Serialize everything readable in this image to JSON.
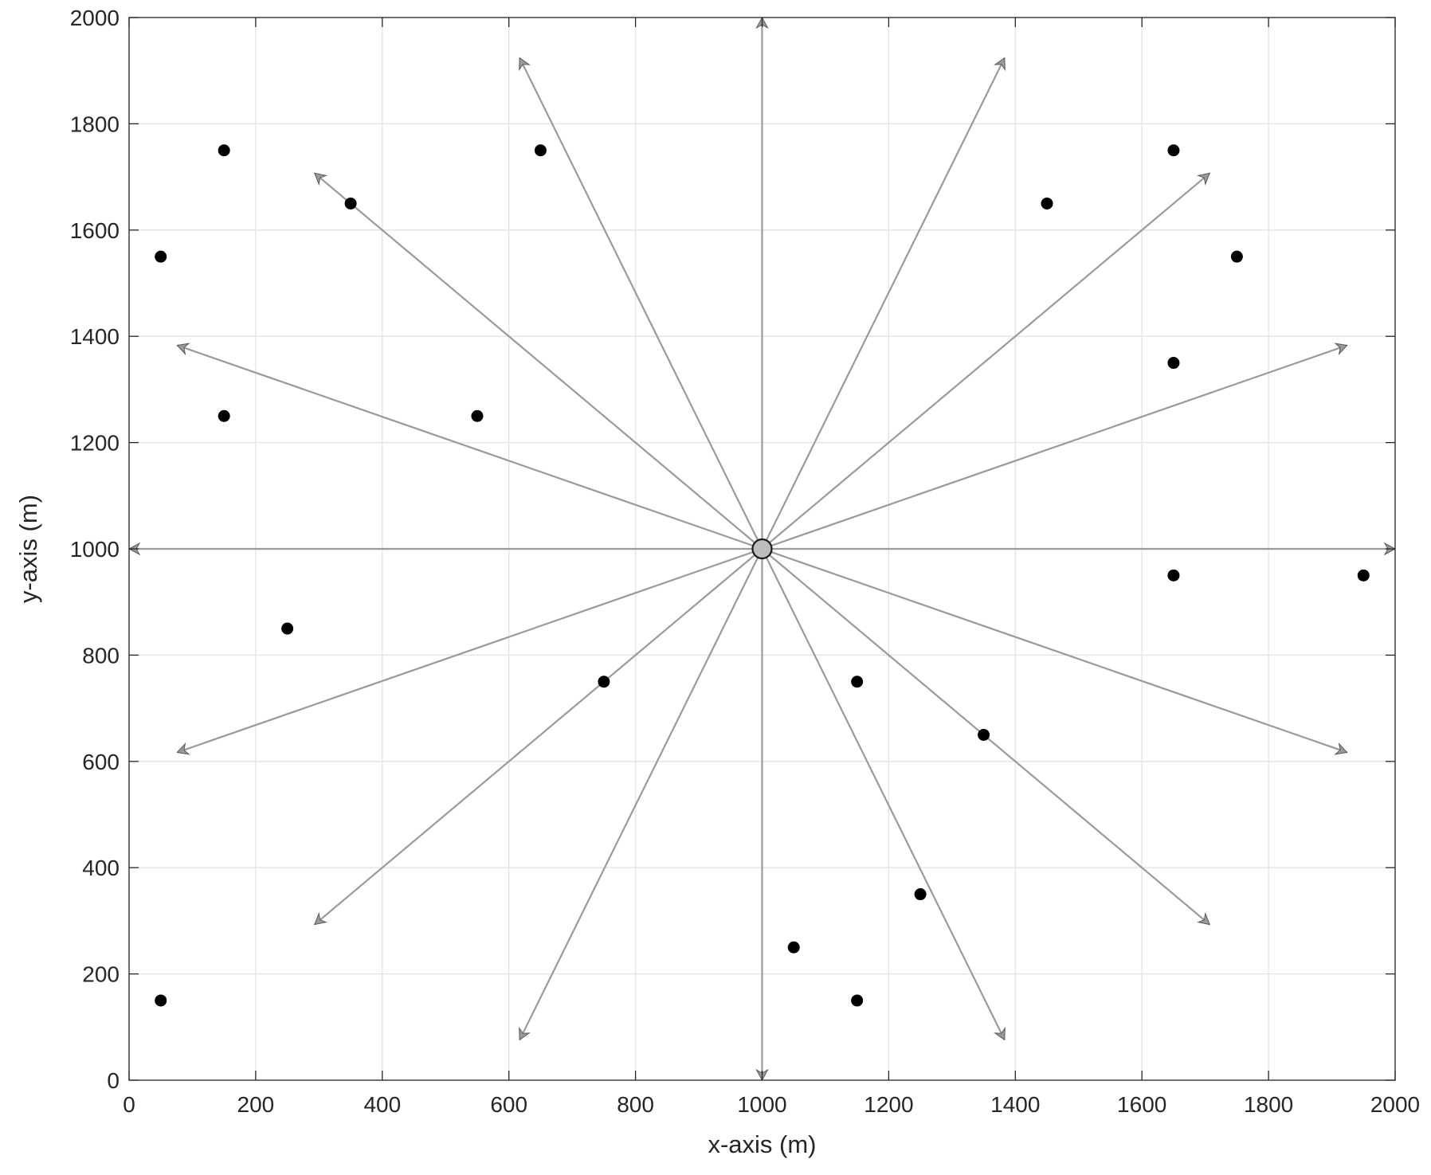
{
  "chart_data": {
    "type": "scatter",
    "title": "",
    "xlabel": "x-axis (m)",
    "ylabel": "y-axis (m)",
    "xlim": [
      0,
      2000
    ],
    "ylim": [
      0,
      2000
    ],
    "x_ticks": [
      "0",
      "200",
      "400",
      "600",
      "800",
      "1000",
      "1200",
      "1400",
      "1600",
      "1800",
      "2000"
    ],
    "y_ticks": [
      "0",
      "200",
      "400",
      "600",
      "800",
      "1000",
      "1200",
      "1400",
      "1600",
      "1800",
      "2000"
    ],
    "grid": true,
    "center": {
      "x": 1000,
      "y": 1000
    },
    "rays": {
      "count": 16,
      "angle_step_deg": 22.5,
      "color": "#9a9a9a",
      "end_points": [
        {
          "x": 2000,
          "y": 1000
        },
        {
          "x": 1924,
          "y": 1383
        },
        {
          "x": 1707,
          "y": 1707
        },
        {
          "x": 1383,
          "y": 1924
        },
        {
          "x": 1000,
          "y": 2000
        },
        {
          "x": 617,
          "y": 1924
        },
        {
          "x": 293,
          "y": 1707
        },
        {
          "x": 76,
          "y": 1383
        },
        {
          "x": 0,
          "y": 1000
        },
        {
          "x": 76,
          "y": 617
        },
        {
          "x": 293,
          "y": 293
        },
        {
          "x": 617,
          "y": 76
        },
        {
          "x": 1000,
          "y": 0
        },
        {
          "x": 1383,
          "y": 76
        },
        {
          "x": 1707,
          "y": 293
        },
        {
          "x": 1924,
          "y": 617
        }
      ]
    },
    "points": [
      {
        "x": 150,
        "y": 1750
      },
      {
        "x": 650,
        "y": 1750
      },
      {
        "x": 350,
        "y": 1650
      },
      {
        "x": 50,
        "y": 1550
      },
      {
        "x": 150,
        "y": 1250
      },
      {
        "x": 550,
        "y": 1250
      },
      {
        "x": 250,
        "y": 850
      },
      {
        "x": 750,
        "y": 750
      },
      {
        "x": 50,
        "y": 150
      },
      {
        "x": 1650,
        "y": 1750
      },
      {
        "x": 1450,
        "y": 1650
      },
      {
        "x": 1750,
        "y": 1550
      },
      {
        "x": 1650,
        "y": 1350
      },
      {
        "x": 1650,
        "y": 950
      },
      {
        "x": 1950,
        "y": 950
      },
      {
        "x": 1150,
        "y": 750
      },
      {
        "x": 1350,
        "y": 650
      },
      {
        "x": 1250,
        "y": 350
      },
      {
        "x": 1050,
        "y": 250
      },
      {
        "x": 1150,
        "y": 150
      }
    ],
    "colors": {
      "points": "#000000",
      "center_fill": "#bdbdbd",
      "grid": "#e3e3e3",
      "axes": "#262626"
    }
  }
}
